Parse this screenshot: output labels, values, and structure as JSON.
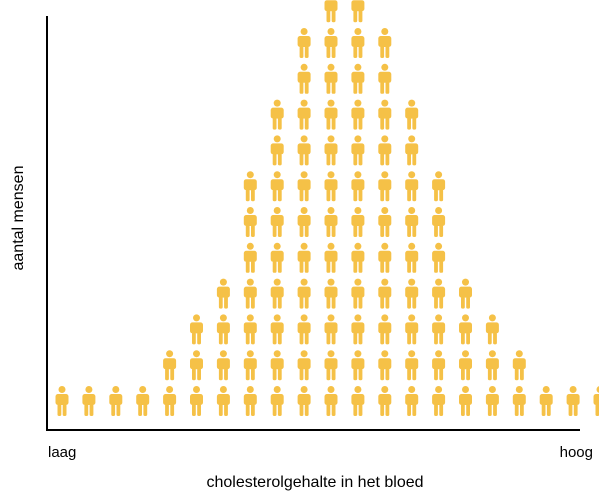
{
  "chart_data": {
    "type": "pictogram",
    "title": "",
    "xlabel": "cholesterolgehalte in het bloed",
    "ylabel": "aantal mensen",
    "x_axis_labels": {
      "low": "laag",
      "high": "hoog"
    },
    "unit": "person-icon",
    "values": [
      1,
      1,
      1,
      1,
      2,
      3,
      4,
      7,
      9,
      11,
      12,
      12,
      11,
      9,
      7,
      4,
      3,
      2,
      1,
      1,
      1,
      1
    ],
    "grid": false,
    "legend": "none"
  },
  "colors": {
    "icon": "#F5C147",
    "axis": "#000000",
    "text": "#000000",
    "background": "#FFFFFF"
  }
}
